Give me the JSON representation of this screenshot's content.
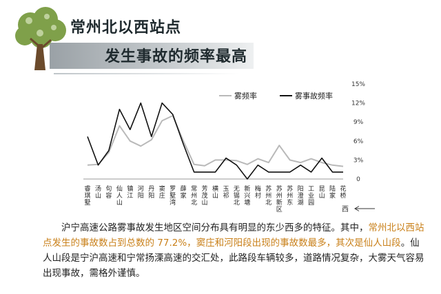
{
  "title": {
    "line1": "常州北以西站点",
    "line2": "发生事故的频率最高"
  },
  "direction_label": "西",
  "paragraph": {
    "seg1": "沪宁高速公路雾事故发生地区空间分布具有明显的东少西多的特征。其中，",
    "seg2": "常州北以西站点发生的事故数占到总数的 77.2%，窦庄和河阳段出现的事故数最多，其次是仙人山段",
    "seg3": "。仙人山段是宁沪高速和宁常扬溧高速的交汇处，此路段车辆较多，道路情况复杂，大雾天气容易出现事故，需格外谨慎。"
  },
  "colors": {
    "fog_rate": "#b9b9b9",
    "accident_rate": "#111111",
    "highlight": "#c9801a"
  },
  "icons": [
    "tree-icon",
    "arrow-left-icon"
  ],
  "chart_data": {
    "type": "line",
    "categories": [
      "睿琪墅",
      "汤山",
      "句容",
      "仙人山",
      "镇江",
      "河阳",
      "丹阳",
      "窦庄",
      "罗墅湾",
      "薛家",
      "常州北",
      "芳茂山",
      "横山",
      "玉祁",
      "无锡北",
      "新兴塘",
      "梅村",
      "苏州北",
      "苏州新区",
      "苏州东",
      "阳澄湖",
      "工业园",
      "昆山",
      "陆家",
      "花桥"
    ],
    "series": [
      {
        "name": "雾频率",
        "values": [
          2.2,
          2.3,
          4.2,
          8.4,
          6.0,
          5.2,
          6.2,
          9.2,
          10.0,
          6.0,
          2.3,
          2.1,
          3.0,
          3.0,
          2.9,
          2.3,
          3.2,
          2.6,
          5.3,
          3.0,
          2.6,
          3.2,
          2.6,
          2.2,
          2.0
        ]
      },
      {
        "name": "雾事故频率",
        "values": [
          6.7,
          2.2,
          4.5,
          11.0,
          7.8,
          12.0,
          6.7,
          12.0,
          10.2,
          5.5,
          1.1,
          1.1,
          1.1,
          3.3,
          2.2,
          0.0,
          2.2,
          1.1,
          1.1,
          1.1,
          2.2,
          1.1,
          3.3,
          1.1,
          1.1
        ]
      }
    ],
    "y_ticks": [
      "0",
      "3%",
      "6%",
      "9%",
      "12%",
      "15%"
    ],
    "ylim": [
      0,
      15
    ],
    "y_axis_side": "right",
    "legend_position": "top",
    "grid": false
  }
}
